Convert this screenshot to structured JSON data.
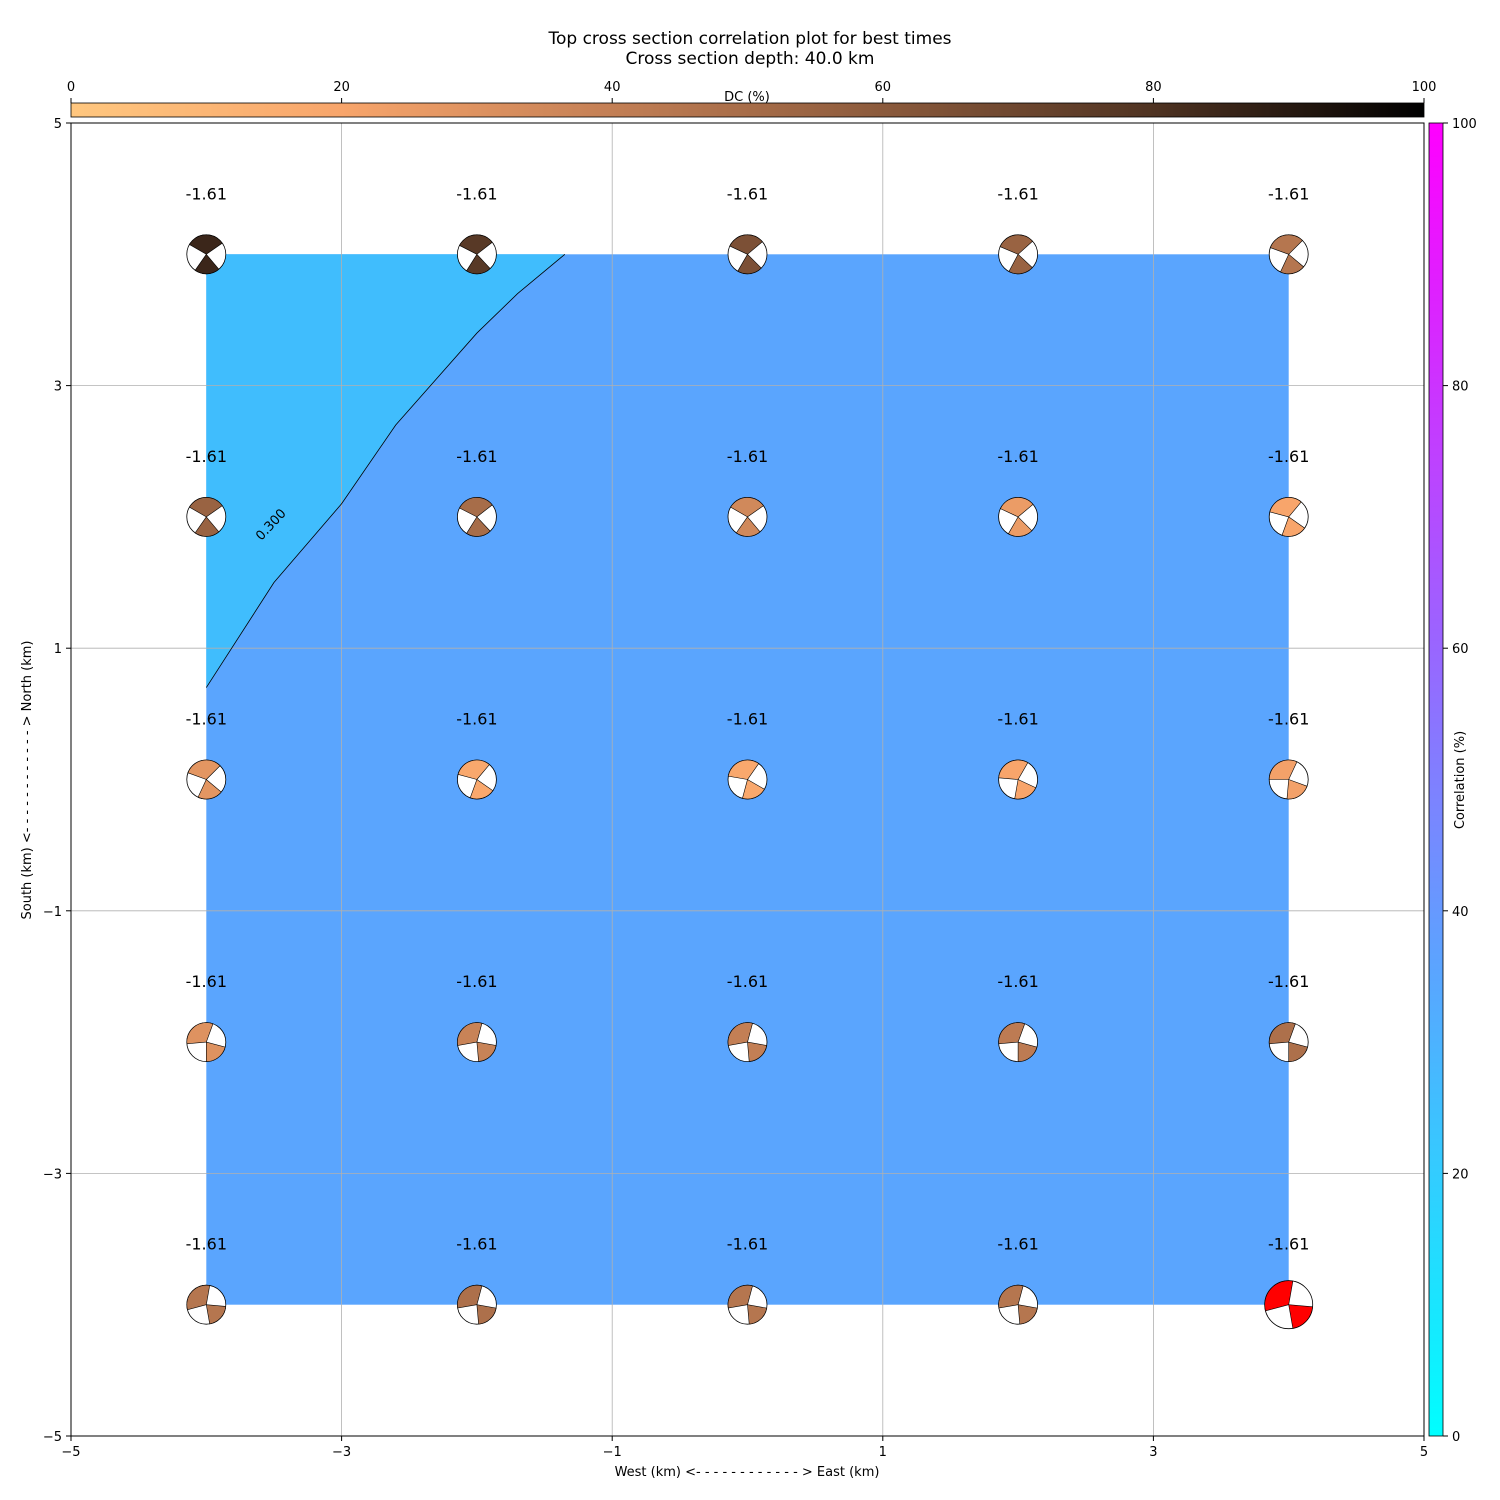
{
  "chart_data": {
    "type": "heatmap",
    "title": "Top cross section correlation plot for best times",
    "subtitle": "Cross section depth: 40.0 km",
    "xlabel": "West (km) <- - - - - - - - - - - - > East (km)",
    "ylabel": "South (km) <- - - - - - - - - - - - > North (km)",
    "xlim": [
      -5,
      5
    ],
    "ylim": [
      -5,
      5
    ],
    "xticks": [
      "−5",
      "−3",
      "−1",
      "1",
      "3",
      "5"
    ],
    "yticks": [
      "−5",
      "−3",
      "−1",
      "1",
      "3",
      "5"
    ],
    "grid": true,
    "contour_label": "0.300",
    "contour_line": [
      [
        -4,
        0.7
      ],
      [
        -3.5,
        1.5
      ],
      [
        -3,
        2.1
      ],
      [
        -2.6,
        2.7
      ],
      [
        -2,
        3.4
      ],
      [
        -1.7,
        3.7
      ],
      [
        -1.35,
        4.0
      ]
    ],
    "colors": {
      "region_low": "#40BDFD",
      "region_high": "#5AA5FE",
      "best_solution": "#FF0000"
    },
    "dc_colorbar": {
      "label": "DC (%)",
      "ticks": [
        "0",
        "20",
        "40",
        "60",
        "80",
        "100"
      ],
      "location": "top"
    },
    "correlation_colorbar": {
      "label": "Correlation (%)",
      "ticks": [
        "0",
        "20",
        "40",
        "60",
        "80",
        "100"
      ],
      "location": "right"
    },
    "grid_x": [
      -4,
      -2,
      0,
      2,
      4
    ],
    "grid_y": [
      4,
      2,
      0,
      -2,
      -4
    ],
    "point_label": "-1.61",
    "points": [
      {
        "x": -4,
        "y": 4,
        "dc": 85,
        "strike": 25,
        "slip": 25
      },
      {
        "x": -2,
        "y": 4,
        "dc": 77,
        "strike": 22,
        "slip": 22
      },
      {
        "x": 0,
        "y": 4,
        "dc": 65,
        "strike": 20,
        "slip": 20
      },
      {
        "x": 2,
        "y": 4,
        "dc": 55,
        "strike": 18,
        "slip": 18
      },
      {
        "x": 4,
        "y": 4,
        "dc": 45,
        "strike": 15,
        "slip": 15
      },
      {
        "x": -4,
        "y": 2,
        "dc": 55,
        "strike": 25,
        "slip": 25
      },
      {
        "x": -2,
        "y": 2,
        "dc": 50,
        "strike": 22,
        "slip": 22
      },
      {
        "x": 0,
        "y": 2,
        "dc": 35,
        "strike": 25,
        "slip": 25
      },
      {
        "x": 2,
        "y": 2,
        "dc": 25,
        "strike": 20,
        "slip": 20
      },
      {
        "x": 4,
        "y": 2,
        "dc": 20,
        "strike": 10,
        "slip": 10
      },
      {
        "x": -4,
        "y": 0,
        "dc": 28,
        "strike": 15,
        "slip": 15
      },
      {
        "x": -2,
        "y": 0,
        "dc": 18,
        "strike": 10,
        "slip": 10
      },
      {
        "x": 0,
        "y": 0,
        "dc": 18,
        "strike": 5,
        "slip": 5
      },
      {
        "x": 2,
        "y": 0,
        "dc": 20,
        "strike": 0,
        "slip": 0
      },
      {
        "x": 4,
        "y": 0,
        "dc": 22,
        "strike": -5,
        "slip": -5
      },
      {
        "x": -4,
        "y": -2,
        "dc": 30,
        "strike": -10,
        "slip": -10
      },
      {
        "x": -2,
        "y": -2,
        "dc": 38,
        "strike": -15,
        "slip": -15
      },
      {
        "x": 0,
        "y": -2,
        "dc": 40,
        "strike": -15,
        "slip": -15
      },
      {
        "x": 2,
        "y": -2,
        "dc": 42,
        "strike": -10,
        "slip": -10
      },
      {
        "x": 4,
        "y": -2,
        "dc": 48,
        "strike": -10,
        "slip": -10
      },
      {
        "x": -4,
        "y": -4,
        "dc": 45,
        "strike": -20,
        "slip": -20
      },
      {
        "x": -2,
        "y": -4,
        "dc": 48,
        "strike": -15,
        "slip": -15
      },
      {
        "x": 0,
        "y": -4,
        "dc": 45,
        "strike": -15,
        "slip": -15
      },
      {
        "x": 2,
        "y": -4,
        "dc": 45,
        "strike": -15,
        "slip": -15
      },
      {
        "x": 4,
        "y": -4,
        "dc": 100,
        "strike": -20,
        "slip": -20,
        "best": true
      }
    ]
  }
}
